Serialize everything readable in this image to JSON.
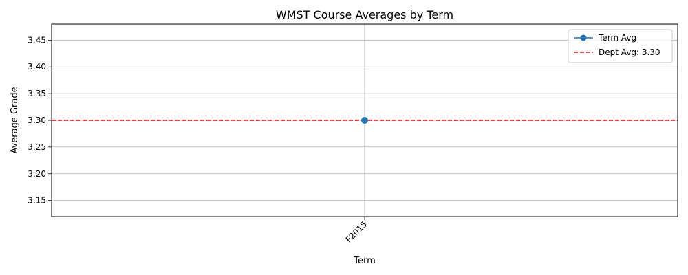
{
  "chart_data": {
    "type": "line",
    "title": "WMST Course Averages by Term",
    "xlabel": "Term",
    "ylabel": "Average Grade",
    "categories": [
      "F2015"
    ],
    "series": [
      {
        "name": "Term Avg",
        "values": [
          3.3
        ],
        "color": "#1f77b4",
        "marker": "circle"
      }
    ],
    "reference_lines": [
      {
        "name": "Dept Avg: 3.30",
        "value": 3.3,
        "color": "#ff0000",
        "style": "dashed"
      }
    ],
    "ylim": [
      3.12,
      3.48
    ],
    "yticks": [
      "3.15",
      "3.20",
      "3.25",
      "3.30",
      "3.35",
      "3.40",
      "3.45"
    ],
    "grid": true,
    "legend_position": "top-right"
  }
}
